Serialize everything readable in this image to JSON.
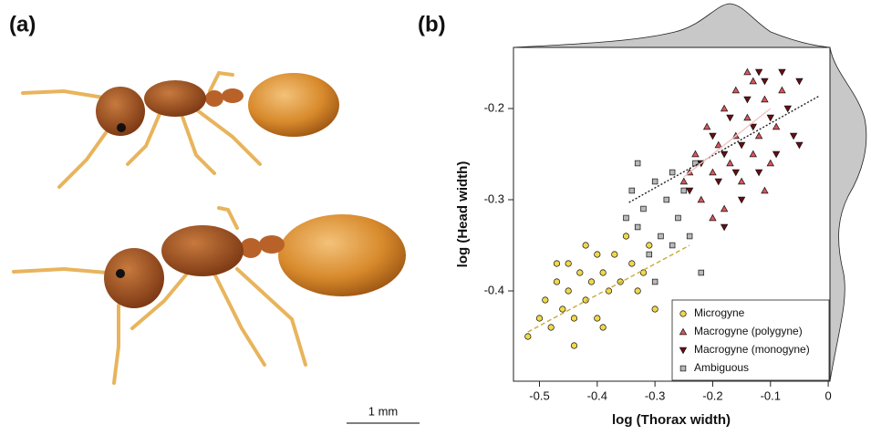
{
  "panel_a": {
    "label": "(a)",
    "scale_bar": "1 mm"
  },
  "chart_data": {
    "type": "scatter",
    "label": "(b)",
    "x_label": "log (Thorax width)",
    "y_label": "log (Head width)",
    "xlim": [
      -0.545,
      0.003
    ],
    "ylim": [
      -0.499,
      -0.133
    ],
    "xticks": [
      -0.5,
      -0.4,
      -0.3,
      -0.2,
      -0.1,
      0
    ],
    "yticks": [
      -0.4,
      -0.3,
      -0.2
    ],
    "legend": "bottom-right",
    "series": [
      {
        "name": "Microgyne",
        "color": "#f0d84a",
        "marker": "circle",
        "x": [
          -0.52,
          -0.5,
          -0.49,
          -0.48,
          -0.47,
          -0.46,
          -0.45,
          -0.45,
          -0.44,
          -0.43,
          -0.42,
          -0.42,
          -0.41,
          -0.4,
          -0.4,
          -0.39,
          -0.38,
          -0.37,
          -0.36,
          -0.35,
          -0.34,
          -0.33,
          -0.32,
          -0.31,
          -0.3,
          -0.44,
          -0.47,
          -0.39
        ],
        "values": [
          -0.45,
          -0.43,
          -0.41,
          -0.44,
          -0.39,
          -0.42,
          -0.4,
          -0.37,
          -0.43,
          -0.38,
          -0.41,
          -0.35,
          -0.39,
          -0.36,
          -0.43,
          -0.38,
          -0.4,
          -0.36,
          -0.39,
          -0.34,
          -0.37,
          -0.4,
          -0.38,
          -0.35,
          -0.42,
          -0.46,
          -0.37,
          -0.44
        ]
      },
      {
        "name": "Macrogyne (polygyne)",
        "color": "#d9565c",
        "marker": "triangle-up",
        "x": [
          -0.25,
          -0.23,
          -0.22,
          -0.21,
          -0.2,
          -0.19,
          -0.18,
          -0.18,
          -0.17,
          -0.16,
          -0.16,
          -0.15,
          -0.14,
          -0.13,
          -0.13,
          -0.12,
          -0.11,
          -0.1,
          -0.09,
          -0.08,
          -0.2,
          -0.24,
          -0.14,
          -0.11
        ],
        "values": [
          -0.28,
          -0.25,
          -0.3,
          -0.22,
          -0.27,
          -0.24,
          -0.2,
          -0.31,
          -0.26,
          -0.18,
          -0.23,
          -0.28,
          -0.21,
          -0.25,
          -0.17,
          -0.23,
          -0.19,
          -0.26,
          -0.22,
          -0.18,
          -0.32,
          -0.27,
          -0.16,
          -0.29
        ]
      },
      {
        "name": "Macrogyne (monogyne)",
        "color": "#6b0d12",
        "marker": "triangle-down",
        "x": [
          -0.24,
          -0.22,
          -0.2,
          -0.19,
          -0.18,
          -0.17,
          -0.16,
          -0.15,
          -0.14,
          -0.13,
          -0.12,
          -0.11,
          -0.1,
          -0.09,
          -0.08,
          -0.07,
          -0.06,
          -0.05,
          -0.05,
          -0.18,
          -0.15,
          -0.12
        ],
        "values": [
          -0.29,
          -0.26,
          -0.23,
          -0.28,
          -0.25,
          -0.21,
          -0.27,
          -0.24,
          -0.19,
          -0.22,
          -0.27,
          -0.17,
          -0.21,
          -0.25,
          -0.16,
          -0.2,
          -0.23,
          -0.17,
          -0.24,
          -0.33,
          -0.3,
          -0.16
        ]
      },
      {
        "name": "Ambiguous",
        "color": "#b8b8b8",
        "marker": "square",
        "x": [
          -0.35,
          -0.34,
          -0.33,
          -0.32,
          -0.31,
          -0.3,
          -0.29,
          -0.28,
          -0.27,
          -0.27,
          -0.26,
          -0.25,
          -0.24,
          -0.23,
          -0.22,
          -0.3,
          -0.33
        ],
        "values": [
          -0.32,
          -0.29,
          -0.33,
          -0.31,
          -0.36,
          -0.28,
          -0.34,
          -0.3,
          -0.35,
          -0.27,
          -0.32,
          -0.29,
          -0.34,
          -0.26,
          -0.38,
          -0.39,
          -0.26
        ]
      }
    ],
    "fit_lines": [
      {
        "color": "#c8a93a",
        "dash": "5,3",
        "x": [
          -0.52,
          -0.24
        ],
        "values": [
          -0.445,
          -0.35
        ]
      },
      {
        "color": "#222222",
        "dash": "2,2",
        "x": [
          -0.345,
          -0.015
        ],
        "values": [
          -0.303,
          -0.186
        ]
      },
      {
        "color": "#f2c4c6",
        "dash": "none",
        "x": [
          -0.25,
          -0.1
        ],
        "values": [
          -0.275,
          -0.2
        ]
      }
    ]
  }
}
